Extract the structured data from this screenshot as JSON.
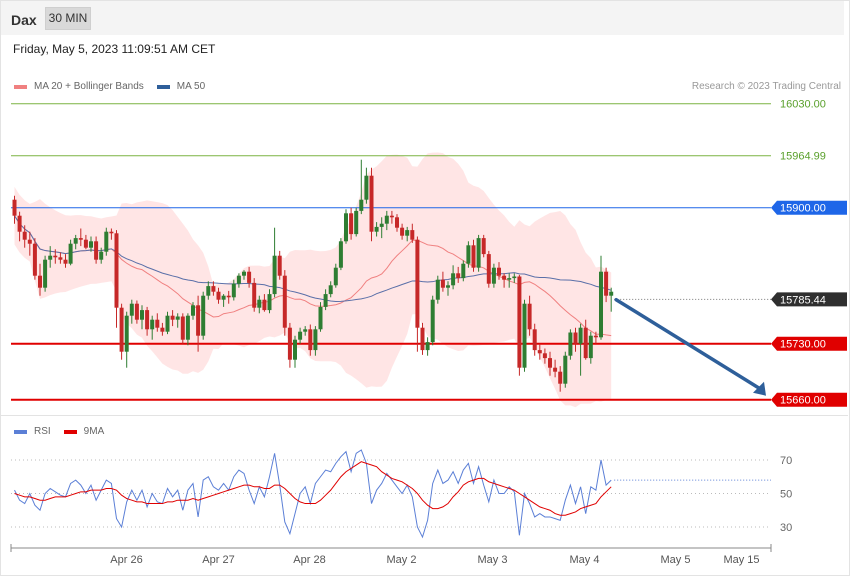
{
  "header": {
    "symbol": "Dax",
    "timeframe": "30 MIN",
    "datetime": "Friday, May 5, 2023 11:09:51 AM CET"
  },
  "legend_main": [
    {
      "label": "MA 20 + Bollinger Bands",
      "color": "#f08080"
    },
    {
      "label": "MA 50",
      "color": "#2e5f9a"
    }
  ],
  "credit": "Research © 2023 Trading Central",
  "legend_rsi": [
    {
      "label": "RSI",
      "color": "#5b7fd6"
    },
    {
      "label": "9MA",
      "color": "#e00000"
    }
  ],
  "colors": {
    "up": "#2e7d32",
    "down": "#c62828",
    "band_fill": "#ffe0e0",
    "arrow": "#2e5f9a",
    "ma20": "#f08080",
    "ma50": "#5a6fa8"
  },
  "chart_data": [
    {
      "type": "candlestick",
      "ylim": [
        15630,
        16050
      ],
      "x_tick_labels": [
        "Apr 26",
        "Apr 27",
        "Apr 28",
        "May 2",
        "May 3",
        "May 4",
        "May 5",
        "May 15"
      ],
      "price_levels": [
        {
          "label": "16030.00",
          "value": 16030,
          "color": "#7cb342",
          "style": "target"
        },
        {
          "label": "15964.99",
          "value": 15964.99,
          "color": "#7cb342",
          "style": "target"
        },
        {
          "label": "15900.00",
          "value": 15900,
          "color": "#1e66e8",
          "style": "pivot"
        },
        {
          "label": "15730.00",
          "value": 15730,
          "color": "#e00000",
          "style": "support"
        },
        {
          "label": "15660.00",
          "value": 15660,
          "color": "#e00000",
          "style": "support"
        }
      ],
      "last_price": {
        "label": "15785.44",
        "value": 15785.44
      },
      "projection": {
        "from": 15785,
        "to": 15660,
        "direction": "down"
      },
      "ohlc": [
        [
          15910,
          15915,
          15880,
          15890
        ],
        [
          15890,
          15895,
          15858,
          15870
        ],
        [
          15870,
          15878,
          15850,
          15860
        ],
        [
          15860,
          15870,
          15840,
          15855
        ],
        [
          15855,
          15862,
          15810,
          15815
        ],
        [
          15815,
          15830,
          15790,
          15800
        ],
        [
          15800,
          15840,
          15795,
          15835
        ],
        [
          15835,
          15852,
          15825,
          15840
        ],
        [
          15840,
          15848,
          15830,
          15838
        ],
        [
          15838,
          15844,
          15830,
          15835
        ],
        [
          15835,
          15842,
          15825,
          15830
        ],
        [
          15830,
          15860,
          15828,
          15855
        ],
        [
          15855,
          15866,
          15848,
          15862
        ],
        [
          15862,
          15874,
          15852,
          15860
        ],
        [
          15860,
          15866,
          15848,
          15850
        ],
        [
          15850,
          15864,
          15845,
          15858
        ],
        [
          15858,
          15864,
          15830,
          15835
        ],
        [
          15835,
          15850,
          15830,
          15845
        ],
        [
          15845,
          15875,
          15840,
          15870
        ],
        [
          15870,
          15874,
          15860,
          15868
        ],
        [
          15868,
          15872,
          15750,
          15775
        ],
        [
          15775,
          15780,
          15710,
          15720
        ],
        [
          15720,
          15770,
          15700,
          15765
        ],
        [
          15765,
          15785,
          15755,
          15780
        ],
        [
          15780,
          15784,
          15755,
          15760
        ],
        [
          15760,
          15778,
          15748,
          15772
        ],
        [
          15772,
          15776,
          15740,
          15748
        ],
        [
          15748,
          15765,
          15735,
          15760
        ],
        [
          15760,
          15768,
          15745,
          15750
        ],
        [
          15750,
          15756,
          15740,
          15745
        ],
        [
          15745,
          15770,
          15742,
          15765
        ],
        [
          15765,
          15772,
          15752,
          15760
        ],
        [
          15760,
          15768,
          15750,
          15764
        ],
        [
          15764,
          15768,
          15730,
          15735
        ],
        [
          15735,
          15768,
          15728,
          15765
        ],
        [
          15765,
          15782,
          15760,
          15778
        ],
        [
          15778,
          15790,
          15720,
          15740
        ],
        [
          15740,
          15795,
          15735,
          15790
        ],
        [
          15790,
          15808,
          15785,
          15802
        ],
        [
          15802,
          15808,
          15790,
          15795
        ],
        [
          15795,
          15800,
          15780,
          15785
        ],
        [
          15785,
          15792,
          15776,
          15790
        ],
        [
          15790,
          15796,
          15780,
          15788
        ],
        [
          15788,
          15810,
          15784,
          15805
        ],
        [
          15805,
          15818,
          15800,
          15815
        ],
        [
          15815,
          15822,
          15810,
          15820
        ],
        [
          15820,
          15826,
          15800,
          15806
        ],
        [
          15806,
          15812,
          15770,
          15775
        ],
        [
          15775,
          15790,
          15768,
          15785
        ],
        [
          15785,
          15792,
          15770,
          15772
        ],
        [
          15772,
          15798,
          15768,
          15792
        ],
        [
          15792,
          15875,
          15788,
          15840
        ],
        [
          15840,
          15846,
          15810,
          15815
        ],
        [
          15815,
          15822,
          15740,
          15750
        ],
        [
          15750,
          15756,
          15700,
          15710
        ],
        [
          15710,
          15740,
          15700,
          15735
        ],
        [
          15735,
          15750,
          15730,
          15745
        ],
        [
          15745,
          15752,
          15740,
          15748
        ],
        [
          15748,
          15754,
          15715,
          15722
        ],
        [
          15722,
          15752,
          15715,
          15748
        ],
        [
          15748,
          15782,
          15745,
          15776
        ],
        [
          15776,
          15798,
          15772,
          15792
        ],
        [
          15792,
          15808,
          15788,
          15803
        ],
        [
          15803,
          15830,
          15800,
          15825
        ],
        [
          15825,
          15862,
          15822,
          15858
        ],
        [
          15858,
          15898,
          15855,
          15893
        ],
        [
          15893,
          15900,
          15860,
          15867
        ],
        [
          15867,
          15900,
          15864,
          15896
        ],
        [
          15896,
          15960,
          15892,
          15910
        ],
        [
          15910,
          15950,
          15905,
          15940
        ],
        [
          15940,
          15950,
          15858,
          15870
        ],
        [
          15870,
          15882,
          15864,
          15876
        ],
        [
          15876,
          15888,
          15862,
          15880
        ],
        [
          15880,
          15896,
          15872,
          15890
        ],
        [
          15890,
          15896,
          15880,
          15888
        ],
        [
          15888,
          15892,
          15870,
          15875
        ],
        [
          15875,
          15880,
          15860,
          15865
        ],
        [
          15865,
          15876,
          15858,
          15872
        ],
        [
          15872,
          15880,
          15856,
          15860
        ],
        [
          15860,
          15864,
          15720,
          15750
        ],
        [
          15750,
          15756,
          15716,
          15722
        ],
        [
          15722,
          15738,
          15715,
          15732
        ],
        [
          15732,
          15790,
          15728,
          15785
        ],
        [
          15785,
          15815,
          15780,
          15810
        ],
        [
          15810,
          15820,
          15795,
          15800
        ],
        [
          15800,
          15808,
          15790,
          15803
        ],
        [
          15803,
          15828,
          15798,
          15818
        ],
        [
          15818,
          15826,
          15806,
          15812
        ],
        [
          15812,
          15834,
          15808,
          15830
        ],
        [
          15830,
          15858,
          15825,
          15853
        ],
        [
          15853,
          15860,
          15820,
          15825
        ],
        [
          15825,
          15866,
          15820,
          15862
        ],
        [
          15862,
          15866,
          15838,
          15842
        ],
        [
          15842,
          15846,
          15800,
          15805
        ],
        [
          15805,
          15830,
          15800,
          15825
        ],
        [
          15825,
          15832,
          15810,
          15815
        ],
        [
          15815,
          15818,
          15800,
          15810
        ],
        [
          15810,
          15818,
          15800,
          15812
        ],
        [
          15812,
          15818,
          15806,
          15814
        ],
        [
          15814,
          15816,
          15690,
          15700
        ],
        [
          15700,
          15785,
          15695,
          15780
        ],
        [
          15780,
          15790,
          15740,
          15748
        ],
        [
          15748,
          15755,
          15715,
          15722
        ],
        [
          15722,
          15730,
          15710,
          15718
        ],
        [
          15718,
          15724,
          15705,
          15712
        ],
        [
          15712,
          15720,
          15690,
          15700
        ],
        [
          15700,
          15710,
          15688,
          15695
        ],
        [
          15695,
          15702,
          15670,
          15680
        ],
        [
          15680,
          15720,
          15675,
          15715
        ],
        [
          15715,
          15748,
          15710,
          15744
        ],
        [
          15744,
          15750,
          15720,
          15730
        ],
        [
          15730,
          15755,
          15690,
          15750
        ],
        [
          15750,
          15760,
          15710,
          15712
        ],
        [
          15712,
          15745,
          15705,
          15740
        ],
        [
          15740,
          15745,
          15730,
          15738
        ],
        [
          15738,
          15840,
          15735,
          15820
        ],
        [
          15820,
          15825,
          15782,
          15790
        ],
        [
          15790,
          15800,
          15770,
          15795
        ]
      ]
    },
    {
      "type": "line",
      "name": "RSI panel",
      "ylim": [
        20,
        80
      ],
      "gridlines": [
        70,
        50,
        30
      ],
      "series": [
        {
          "name": "RSI",
          "values": [
            52,
            46,
            44,
            50,
            43,
            40,
            50,
            53,
            51,
            49,
            48,
            56,
            58,
            55,
            50,
            55,
            46,
            52,
            58,
            56,
            35,
            30,
            45,
            52,
            46,
            52,
            42,
            50,
            45,
            44,
            53,
            48,
            52,
            40,
            52,
            56,
            36,
            58,
            60,
            54,
            52,
            56,
            52,
            60,
            64,
            62,
            52,
            44,
            54,
            48,
            60,
            74,
            55,
            33,
            26,
            38,
            50,
            54,
            44,
            56,
            60,
            64,
            63,
            68,
            72,
            75,
            63,
            74,
            76,
            68,
            44,
            52,
            56,
            62,
            58,
            54,
            50,
            55,
            48,
            30,
            24,
            34,
            56,
            64,
            56,
            58,
            63,
            56,
            64,
            68,
            56,
            66,
            55,
            45,
            58,
            50,
            50,
            54,
            51,
            25,
            50,
            44,
            36,
            38,
            36,
            36,
            35,
            34,
            46,
            55,
            44,
            54,
            38,
            54,
            52,
            70,
            55,
            58
          ]
        },
        {
          "name": "9MA",
          "values": [
            50,
            49,
            48,
            48,
            47,
            46,
            46,
            47,
            48,
            48,
            48,
            49,
            50,
            51,
            51,
            52,
            52,
            52,
            53,
            53,
            52,
            49,
            47,
            46,
            45,
            45,
            44,
            44,
            44,
            44,
            45,
            45,
            46,
            46,
            46,
            47,
            46,
            47,
            48,
            49,
            50,
            51,
            52,
            53,
            54,
            55,
            55,
            54,
            54,
            53,
            53,
            55,
            55,
            53,
            50,
            47,
            45,
            44,
            44,
            44,
            46,
            49,
            52,
            56,
            60,
            63,
            65,
            67,
            69,
            68,
            67,
            66,
            63,
            61,
            59,
            58,
            57,
            55,
            53,
            50,
            46,
            43,
            41,
            41,
            42,
            44,
            48,
            51,
            55,
            57,
            58,
            59,
            59,
            57,
            56,
            55,
            54,
            53,
            52,
            50,
            48,
            46,
            44,
            42,
            41,
            40,
            38,
            37,
            37,
            38,
            39,
            41,
            42,
            43,
            44,
            48,
            51,
            54
          ]
        }
      ],
      "tick_labels": [
        "70",
        "50",
        "30"
      ]
    }
  ]
}
